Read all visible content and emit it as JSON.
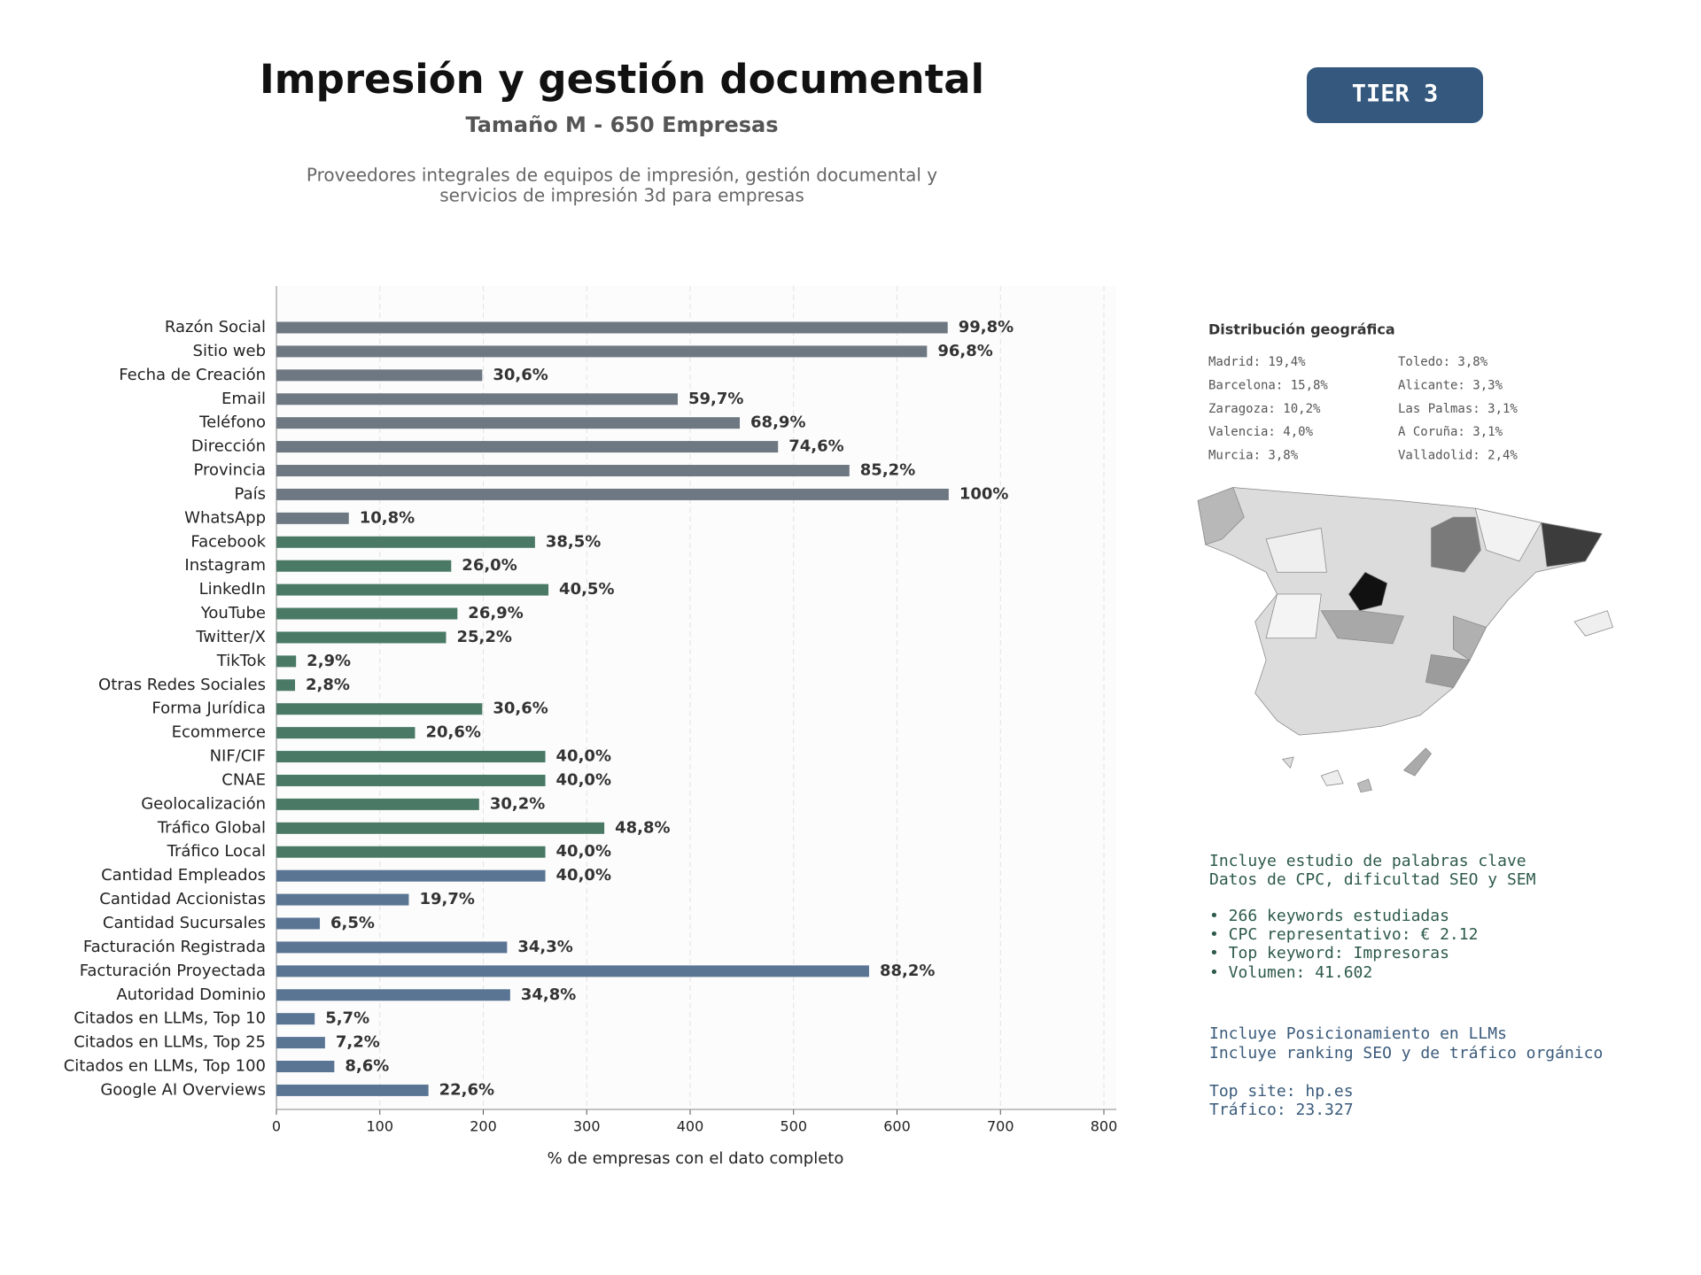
{
  "header": {
    "title": "Impresión y gestión documental",
    "subtitle": "Tamaño M - 650 Empresas",
    "description": [
      "Proveedores integrales de equipos de impresión, gestión documental y",
      "servicios de impresión 3d para empresas"
    ]
  },
  "badge": "TIER 3",
  "chart_data": {
    "type": "hbar",
    "xlabel": "% de empresas con el dato completo",
    "categories": [
      "Razón Social",
      "Sitio web",
      "Fecha de Creación",
      "Email",
      "Teléfono",
      "Dirección",
      "Provincia",
      "País",
      "WhatsApp",
      "Facebook",
      "Instagram",
      "LinkedIn",
      "YouTube",
      "Twitter/X",
      "TikTok",
      "Otras Redes Sociales",
      "Forma Jurídica",
      "Ecommerce",
      "NIF/CIF",
      "CNAE",
      "Geolocalización",
      "Tráfico Global",
      "Tráfico Local",
      "Cantidad Empleados",
      "Cantidad Accionistas",
      "Cantidad Sucursales",
      "Facturación Registrada",
      "Facturación Proyectada",
      "Autoridad Dominio",
      "Citados en LLMs, Top 10",
      "Citados en LLMs, Top 25",
      "Citados en LLMs, Top 100",
      "Google AI Overviews"
    ],
    "values": [
      649,
      629,
      199,
      388,
      448,
      485,
      554,
      650,
      70,
      250,
      169,
      263,
      175,
      164,
      19,
      18,
      199,
      134,
      260,
      260,
      196,
      317,
      260,
      260,
      128,
      42,
      223,
      573,
      226,
      37,
      47,
      56,
      147
    ],
    "value_labels": [
      "99,8%",
      "96,8%",
      "30,6%",
      "59,7%",
      "68,9%",
      "74,6%",
      "85,2%",
      "100%",
      "10,8%",
      "38,5%",
      "26,0%",
      "40,5%",
      "26,9%",
      "25,2%",
      "2,9%",
      "2,8%",
      "30,6%",
      "20,6%",
      "40,0%",
      "40,0%",
      "30,2%",
      "48,8%",
      "40,0%",
      "40,0%",
      "19,7%",
      "6,5%",
      "34,3%",
      "88,2%",
      "34,8%",
      "5,7%",
      "7,2%",
      "8,6%",
      "22,6%"
    ],
    "colors": [
      "#6e7882",
      "#6e7882",
      "#6e7882",
      "#6e7882",
      "#6e7882",
      "#6e7882",
      "#6e7882",
      "#6e7882",
      "#6e7882",
      "#4a7a66",
      "#4a7a66",
      "#4a7a66",
      "#4a7a66",
      "#4a7a66",
      "#4a7a66",
      "#4a7a66",
      "#4a7a66",
      "#4a7a66",
      "#4a7a66",
      "#4a7a66",
      "#4a7a66",
      "#4a7a66",
      "#4a7a66",
      "#5a7594",
      "#5a7594",
      "#5a7594",
      "#5a7594",
      "#5a7594",
      "#5a7594",
      "#5a7594",
      "#5a7594",
      "#5a7594",
      "#5a7594"
    ],
    "xlim": [
      0,
      812
    ],
    "xticks": [
      0,
      100,
      200,
      300,
      400,
      500,
      600,
      700,
      800
    ],
    "grid": true
  },
  "geo": {
    "title": "Distribución geográfica",
    "items": [
      "Madrid: 19,4%",
      "Barcelona: 15,8%",
      "Zaragoza: 10,2%",
      "Valencia: 4,0%",
      "Murcia: 3,8%",
      "Toledo: 3,8%",
      "Alicante: 3,3%",
      "Las Palmas: 3,1%",
      "A Coruña: 3,1%",
      "Valladolid: 2,4%"
    ]
  },
  "notes": {
    "keywords": [
      "Incluye estudio de palabras clave",
      "Datos de CPC, dificultad SEO y SEM",
      "• 266 keywords estudiadas",
      "• CPC representativo: € 2.12",
      "• Top keyword: Impresoras",
      "• Volumen: 41.602"
    ],
    "llm": [
      "Incluye Posicionamiento en LLMs",
      "Incluye ranking SEO y de tráfico orgánico",
      "Top site: hp.es",
      "Tráfico: 23.327"
    ]
  }
}
